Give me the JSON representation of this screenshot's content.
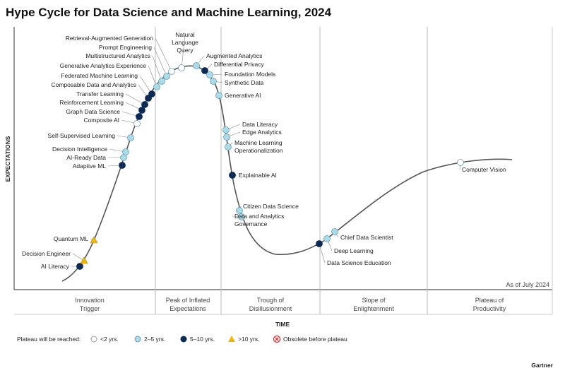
{
  "title": "Hype Cycle for Data Science and Machine Learning, 2024",
  "y_axis_label": "EXPECTATIONS",
  "x_axis_label": "TIME",
  "as_of": "As of July 2024",
  "phases": [
    [
      "Innovation",
      "Trigger"
    ],
    [
      "Peak of Inflated",
      "Expectations"
    ],
    [
      "Trough of",
      "Disillusionment"
    ],
    [
      "Slope of",
      "Enlightenment"
    ],
    [
      "Plateau of",
      "Productivity"
    ]
  ],
  "legend": {
    "title": "Plateau will be reached:",
    "items": [
      {
        "label": "<2 yrs.",
        "type": "white"
      },
      {
        "label": "2–5 yrs.",
        "type": "light"
      },
      {
        "label": "5–10 yrs.",
        "type": "dark"
      },
      {
        "label": ">10 yrs.",
        "type": "triangle"
      },
      {
        "label": "Obsolete before plateau",
        "type": "obsolete"
      }
    ]
  },
  "colors": {
    "white": "#ffffff",
    "light": "#a9dce8",
    "dark": "#0b2a55",
    "triangle": "#f2b705",
    "obsolete": "#e0262b",
    "curve": "#555555"
  },
  "technologies": [
    {
      "name": "AI Literacy",
      "type": "dark"
    },
    {
      "name": "Decision Engineer",
      "type": "triangle"
    },
    {
      "name": "Quantum ML",
      "type": "triangle"
    },
    {
      "name": "Adaptive ML",
      "type": "dark"
    },
    {
      "name": "AI-Ready Data",
      "type": "light"
    },
    {
      "name": "Decision Intelligence",
      "type": "light"
    },
    {
      "name": "Self-Supervised Learning",
      "type": "light"
    },
    {
      "name": "Composite AI",
      "type": "white"
    },
    {
      "name": "Graph Data Science",
      "type": "dark"
    },
    {
      "name": "Reinforcement Learning",
      "type": "dark"
    },
    {
      "name": "Transfer Learning",
      "type": "dark"
    },
    {
      "name": "Composable Data and Analytics",
      "type": "dark"
    },
    {
      "name": "Federated Machine Learning",
      "type": "dark"
    },
    {
      "name": "Generative Analytics Experience",
      "type": "light"
    },
    {
      "name": "Multistructured Analytics",
      "type": "light"
    },
    {
      "name": "Prompt Engineering",
      "type": "light"
    },
    {
      "name": "Retrieval-Augmented Generation",
      "type": "white"
    },
    {
      "name": "Natural Language Query",
      "type": "white"
    },
    {
      "name": "Augmented Analytics",
      "type": "light"
    },
    {
      "name": "Differential Privacy",
      "type": "dark"
    },
    {
      "name": "Foundation Models",
      "type": "light"
    },
    {
      "name": "Synthetic Data",
      "type": "light"
    },
    {
      "name": "Generative AI",
      "type": "light"
    },
    {
      "name": "Data Literacy",
      "type": "light"
    },
    {
      "name": "Edge Analytics",
      "type": "light"
    },
    {
      "name": "Machine Learning Operationalization",
      "type": "light"
    },
    {
      "name": "Explainable AI",
      "type": "dark"
    },
    {
      "name": "Citizen Data Science",
      "type": "light"
    },
    {
      "name": "Data and Analytics Governance",
      "type": "light"
    },
    {
      "name": "Data Science Education",
      "type": "dark"
    },
    {
      "name": "Deep Learning",
      "type": "light"
    },
    {
      "name": "Chief Data Scientist",
      "type": "light"
    },
    {
      "name": "Computer Vision",
      "type": "white"
    }
  ],
  "brand": "Gartner"
}
